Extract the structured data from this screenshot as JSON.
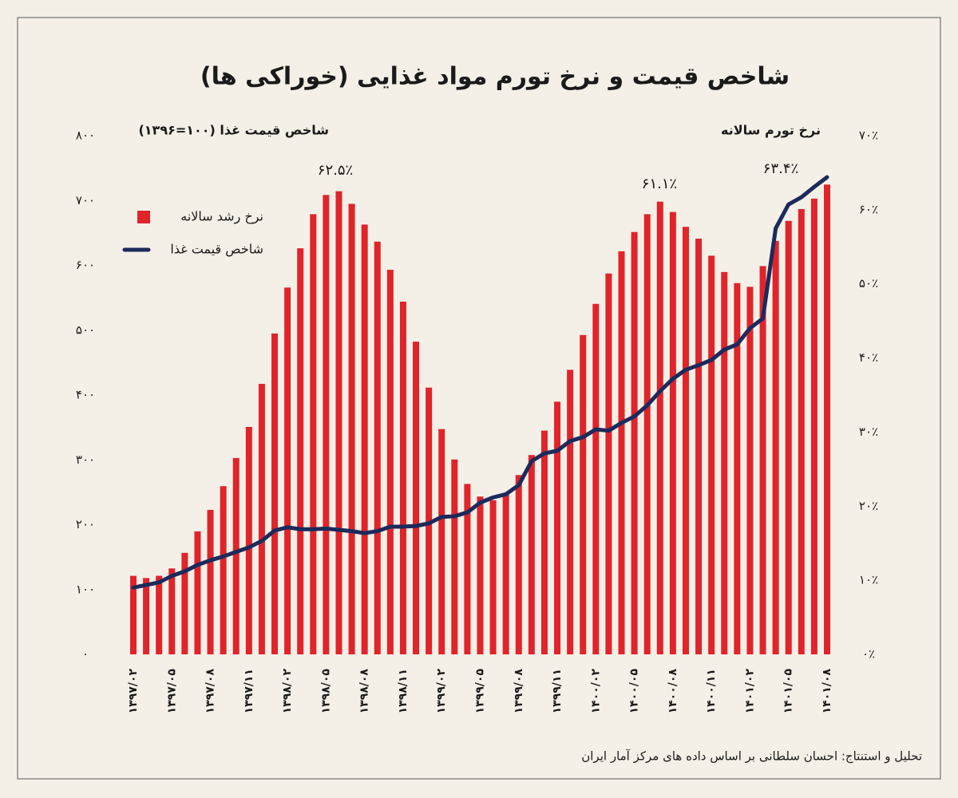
{
  "chart_data": {
    "type": "bar",
    "title": "شاخص قیمت و نرخ تورم مواد غذایی (خوراکی ها)",
    "y_label": "شاخص قیمت غذا (۱۰۰=۱۳۹۶)",
    "y2_label": "نرخ تورم سالانه",
    "annotations": [
      "۶۲.۵٪",
      "۶۱.۱٪",
      "۶۳.۴٪"
    ],
    "source": "تحلیل و استنتاج: احسان سلطانی بر اساس داده های مرکز آمار ایران",
    "categories": [
      "۱۳۹۷/۰۲",
      null,
      null,
      "۱۳۹۷/۰۵",
      null,
      null,
      "۱۳۹۷/۰۸",
      null,
      null,
      "۱۳۹۷/۱۱",
      null,
      null,
      "۱۳۹۸/۰۲",
      null,
      null,
      "۱۳۹۸/۰۵",
      null,
      null,
      "۱۳۹۸/۰۸",
      null,
      null,
      "۱۳۹۸/۱۱",
      null,
      null,
      "۱۳۹۹/۰۲",
      null,
      null,
      "۱۳۹۹/۰۵",
      null,
      null,
      "۱۳۹۹/۰۸",
      null,
      null,
      "۱۳۹۹/۱۱",
      null,
      null,
      "۱۴۰۰/۰۲",
      null,
      null,
      "۱۴۰۰/۰۵",
      null,
      null,
      "۱۴۰۰/۰۸",
      null,
      null,
      "۱۴۰۰/۱۱",
      null,
      null,
      "۱۴۰۱/۰۲",
      null,
      null,
      "۱۴۰۱/۰۵",
      null,
      null,
      "۱۴۰۱/۰۸"
    ],
    "series": [
      {
        "name": "نرخ رشد سالانه",
        "type": "bar",
        "axis": "y2",
        "color": "#e0242a",
        "values": [
          10.6,
          10.3,
          10.6,
          11.6,
          13.7,
          16.6,
          19.5,
          22.7,
          26.5,
          30.7,
          36.5,
          43.3,
          49.5,
          54.8,
          59.4,
          62.0,
          62.5,
          60.8,
          58.0,
          55.7,
          51.9,
          47.6,
          42.2,
          36.0,
          30.4,
          26.3,
          23.0,
          21.3,
          20.8,
          21.8,
          24.2,
          26.9,
          30.2,
          34.1,
          38.4,
          43.1,
          47.3,
          51.4,
          54.4,
          57.0,
          59.4,
          61.1,
          59.7,
          57.7,
          56.1,
          53.8,
          51.6,
          50.1,
          49.6,
          52.4,
          55.8,
          58.5,
          60.1,
          61.5,
          63.4
        ]
      },
      {
        "name": "شاخص قیمت غذا",
        "type": "line",
        "axis": "y",
        "color": "#1c2a5c",
        "values": [
          103,
          107,
          111,
          121,
          128,
          138,
          145,
          151,
          158,
          165,
          175,
          191,
          196,
          193,
          193,
          194,
          192,
          190,
          187,
          190,
          197,
          197,
          198,
          202,
          212,
          213,
          219,
          234,
          242,
          247,
          261,
          298,
          310,
          314,
          329,
          335,
          347,
          345,
          357,
          367,
          384,
          406,
          425,
          439,
          446,
          454,
          470,
          478,
          503,
          518,
          657,
          694,
          705,
          721,
          736
        ]
      }
    ],
    "ylim": [
      0,
      800
    ],
    "yticks": [
      {
        "value": 0,
        "label": "۰"
      },
      {
        "value": 100,
        "label": "۱۰۰"
      },
      {
        "value": 200,
        "label": "۲۰۰"
      },
      {
        "value": 300,
        "label": "۳۰۰"
      },
      {
        "value": 400,
        "label": "۴۰۰"
      },
      {
        "value": 500,
        "label": "۵۰۰"
      },
      {
        "value": 600,
        "label": "۶۰۰"
      },
      {
        "value": 700,
        "label": "۷۰۰"
      },
      {
        "value": 800,
        "label": "۸۰۰"
      }
    ],
    "y2lim": [
      0,
      70
    ],
    "y2ticks": [
      {
        "value": 0,
        "label": "۰٪"
      },
      {
        "value": 10,
        "label": "۱۰٪"
      },
      {
        "value": 20,
        "label": "۲۰٪"
      },
      {
        "value": 30,
        "label": "۳۰٪"
      },
      {
        "value": 40,
        "label": "۴۰٪"
      },
      {
        "value": 50,
        "label": "۵۰٪"
      },
      {
        "value": 60,
        "label": "۶۰٪"
      },
      {
        "value": 70,
        "label": "۷۰٪"
      }
    ],
    "grid": false
  }
}
